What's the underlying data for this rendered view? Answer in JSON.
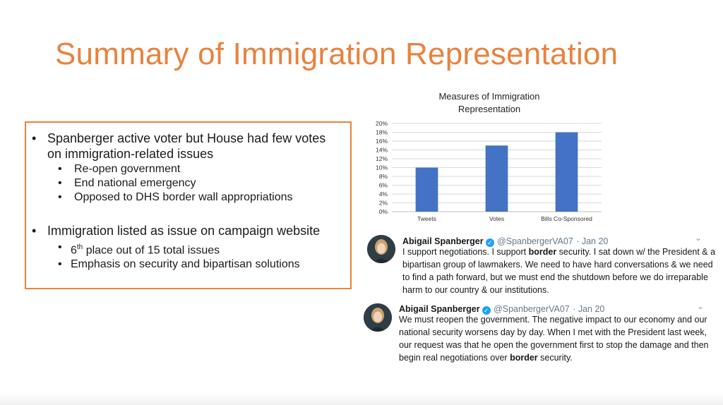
{
  "slide": {
    "title": "Summary of Immigration Representation"
  },
  "bullets": {
    "item1": {
      "line1": "Spanberger active voter but House had few votes",
      "line2": "on immigration-related issues",
      "sub": [
        "Re-open government",
        "End national emergency",
        "Opposed to DHS border wall appropriations"
      ]
    },
    "item2": {
      "line1": "Immigration listed as issue on campaign website",
      "sub1_num": "6",
      "sub1_sup": "th",
      "sub1_rest": " place out of 15 total issues",
      "sub2": "Emphasis on security and bipartisan solutions"
    },
    "bullet_char": "•"
  },
  "chart_data": {
    "type": "bar",
    "title_lines": [
      "Measures of Immigration",
      "Representation"
    ],
    "categories": [
      "Tweets",
      "Votes",
      "Bills Co-Sponsored"
    ],
    "values": [
      10,
      15,
      18
    ],
    "ylim": [
      0,
      20
    ],
    "yticks": [
      "0%",
      "2%",
      "4%",
      "6%",
      "8%",
      "10%",
      "12%",
      "14%",
      "16%",
      "18%",
      "20%"
    ],
    "grid": true,
    "bar_color": "#4472c4"
  },
  "tweets": [
    {
      "name": "Abigail Spanberger",
      "handle": "@SpanbergerVA07",
      "date": "· Jan 20",
      "lines": [
        [
          "I support negotiations. I support ",
          "border",
          " security. I sat down w/ the President & a"
        ],
        [
          "bipartisan group of lawmakers. We need to have hard conversations & we need"
        ],
        [
          "to find a path forward, but we must end the shutdown before we do irreparable"
        ],
        [
          "harm to our country & our institutions."
        ]
      ]
    },
    {
      "name": "Abigail Spanberger",
      "handle": "@SpanbergerVA07",
      "date": "· Jan 20",
      "lines": [
        [
          "We must reopen the government. The negative impact to our economy and our"
        ],
        [
          "national security worsens day by day. When I met with the President last week,"
        ],
        [
          "our request was that he open the government first to stop the damage and then"
        ],
        [
          "begin real negotiations over ",
          "border",
          " security."
        ]
      ]
    }
  ],
  "icons": {
    "verified": "verified-badge-icon",
    "chevron": "chevron-down-icon",
    "verified_glyph": "✓",
    "chevron_glyph": "⌄"
  }
}
